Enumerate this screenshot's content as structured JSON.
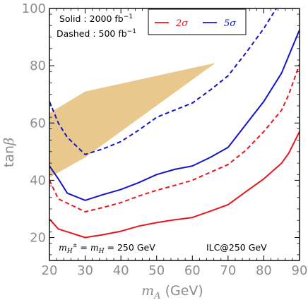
{
  "chart_data": {
    "type": "line",
    "xlabel": {
      "symbol": "m",
      "sub": "A",
      "unit": " (GeV)"
    },
    "ylabel": {
      "prefix": "tan",
      "symbol": "β"
    },
    "xlim": [
      20,
      90
    ],
    "ylim": [
      12,
      100
    ],
    "xticks": [
      20,
      30,
      40,
      50,
      60,
      70,
      80,
      90
    ],
    "yticks": [
      20,
      40,
      60,
      80,
      100
    ],
    "annotations": {
      "solid": {
        "text": "Solid : 2000 fb",
        "sup": "−1"
      },
      "dashed": {
        "text": "Dashed : 500  fb",
        "sup": "−1"
      },
      "masses": {
        "m1": "m",
        "s1": "H",
        "sup1": "±",
        "mid": " = ",
        "m2": "m",
        "s2": "H",
        "tail": " = 250 GeV"
      },
      "collider": "ILC@250 GeV"
    },
    "legend": {
      "placement": "top-center",
      "entries": [
        {
          "label": "2σ",
          "color": "#e8151b"
        },
        {
          "label": "5σ",
          "color": "#1414c8"
        }
      ]
    },
    "series": [
      {
        "sigma": "2σ",
        "lumi": "2000 fb-1",
        "style": "solid",
        "color": "#e8151b",
        "x": [
          20,
          22.5,
          25,
          30,
          35,
          40,
          45,
          50,
          55,
          60,
          65,
          70,
          75,
          80,
          85,
          87,
          90
        ],
        "y": [
          26.5,
          23,
          22,
          20,
          21,
          22.2,
          24,
          25.2,
          26.2,
          27,
          29.2,
          31.5,
          36,
          40.5,
          46,
          49.5,
          57
        ]
      },
      {
        "sigma": "2σ",
        "lumi": "500 fb-1",
        "style": "dashed",
        "color": "#e8151b",
        "x": [
          20,
          22.5,
          25,
          30,
          35,
          40,
          45,
          50,
          55,
          60,
          65,
          70,
          75,
          80,
          85,
          87,
          90
        ],
        "y": [
          40,
          33.5,
          32,
          29,
          30.5,
          32.2,
          34.5,
          36.5,
          38.2,
          40,
          42.8,
          45.5,
          50.5,
          57,
          64.5,
          70,
          80.5
        ]
      },
      {
        "sigma": "5σ",
        "lumi": "2000 fb-1",
        "style": "solid",
        "color": "#1414c8",
        "x": [
          20,
          22.5,
          25,
          30,
          35,
          40,
          45,
          50,
          55,
          60,
          65,
          70,
          75,
          80,
          85,
          87,
          90
        ],
        "y": [
          45,
          40.5,
          35.5,
          33,
          35,
          36.8,
          39.2,
          42,
          43.8,
          45,
          48,
          51.5,
          59.5,
          67.5,
          77.5,
          83.5,
          92.5
        ]
      },
      {
        "sigma": "5σ",
        "lumi": "500 fb-1",
        "style": "dashed",
        "color": "#1414c8",
        "x": [
          20,
          22.5,
          25,
          30,
          35,
          40,
          45,
          50,
          55,
          60,
          65,
          70,
          75,
          80,
          83.5
        ],
        "y": [
          67.5,
          60,
          55,
          49,
          51,
          53.5,
          57.5,
          62,
          64.5,
          67,
          71.5,
          76.5,
          84.5,
          93,
          100
        ]
      }
    ],
    "region": {
      "color": "#e8c88c",
      "x": [
        20,
        30,
        66.5,
        30,
        20
      ],
      "y": [
        63.5,
        71,
        81,
        48,
        41
      ]
    }
  }
}
